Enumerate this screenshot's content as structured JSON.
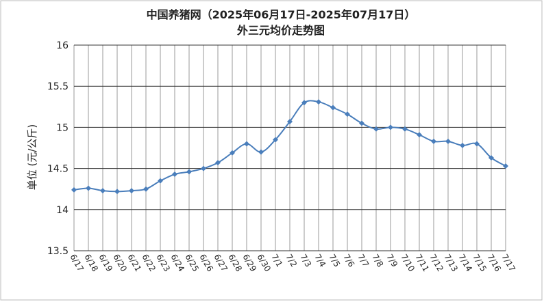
{
  "chart_data": {
    "type": "line",
    "title": "中国养猪网（2025年06月17日-2025年07月17日）",
    "subtitle": "外三元均价走势图",
    "y_label": "单位 (元/公斤)",
    "categories": [
      "6/17",
      "6/18",
      "6/19",
      "6/20",
      "6/21",
      "6/22",
      "6/23",
      "6/24",
      "6/25",
      "6/26",
      "6/27",
      "6/28",
      "6/29",
      "6/30",
      "7/1",
      "7/2",
      "7/3",
      "7/4",
      "7/5",
      "7/6",
      "7/7",
      "7/8",
      "7/9",
      "7/10",
      "7/11",
      "7/12",
      "7/13",
      "7/14",
      "7/15",
      "7/16",
      "7/17"
    ],
    "values": [
      14.24,
      14.26,
      14.23,
      14.22,
      14.23,
      14.25,
      14.35,
      14.43,
      14.46,
      14.5,
      14.57,
      14.69,
      14.8,
      14.7,
      14.85,
      15.07,
      15.3,
      15.31,
      15.24,
      15.16,
      15.05,
      14.98,
      15.0,
      14.98,
      14.91,
      14.83,
      14.83,
      14.78,
      14.8,
      14.63,
      14.53
    ],
    "color": "#4a7ebb",
    "ylim": [
      13.5,
      16
    ],
    "yticks": [
      13.5,
      14,
      14.5,
      15,
      15.5,
      16
    ],
    "grid": true
  }
}
